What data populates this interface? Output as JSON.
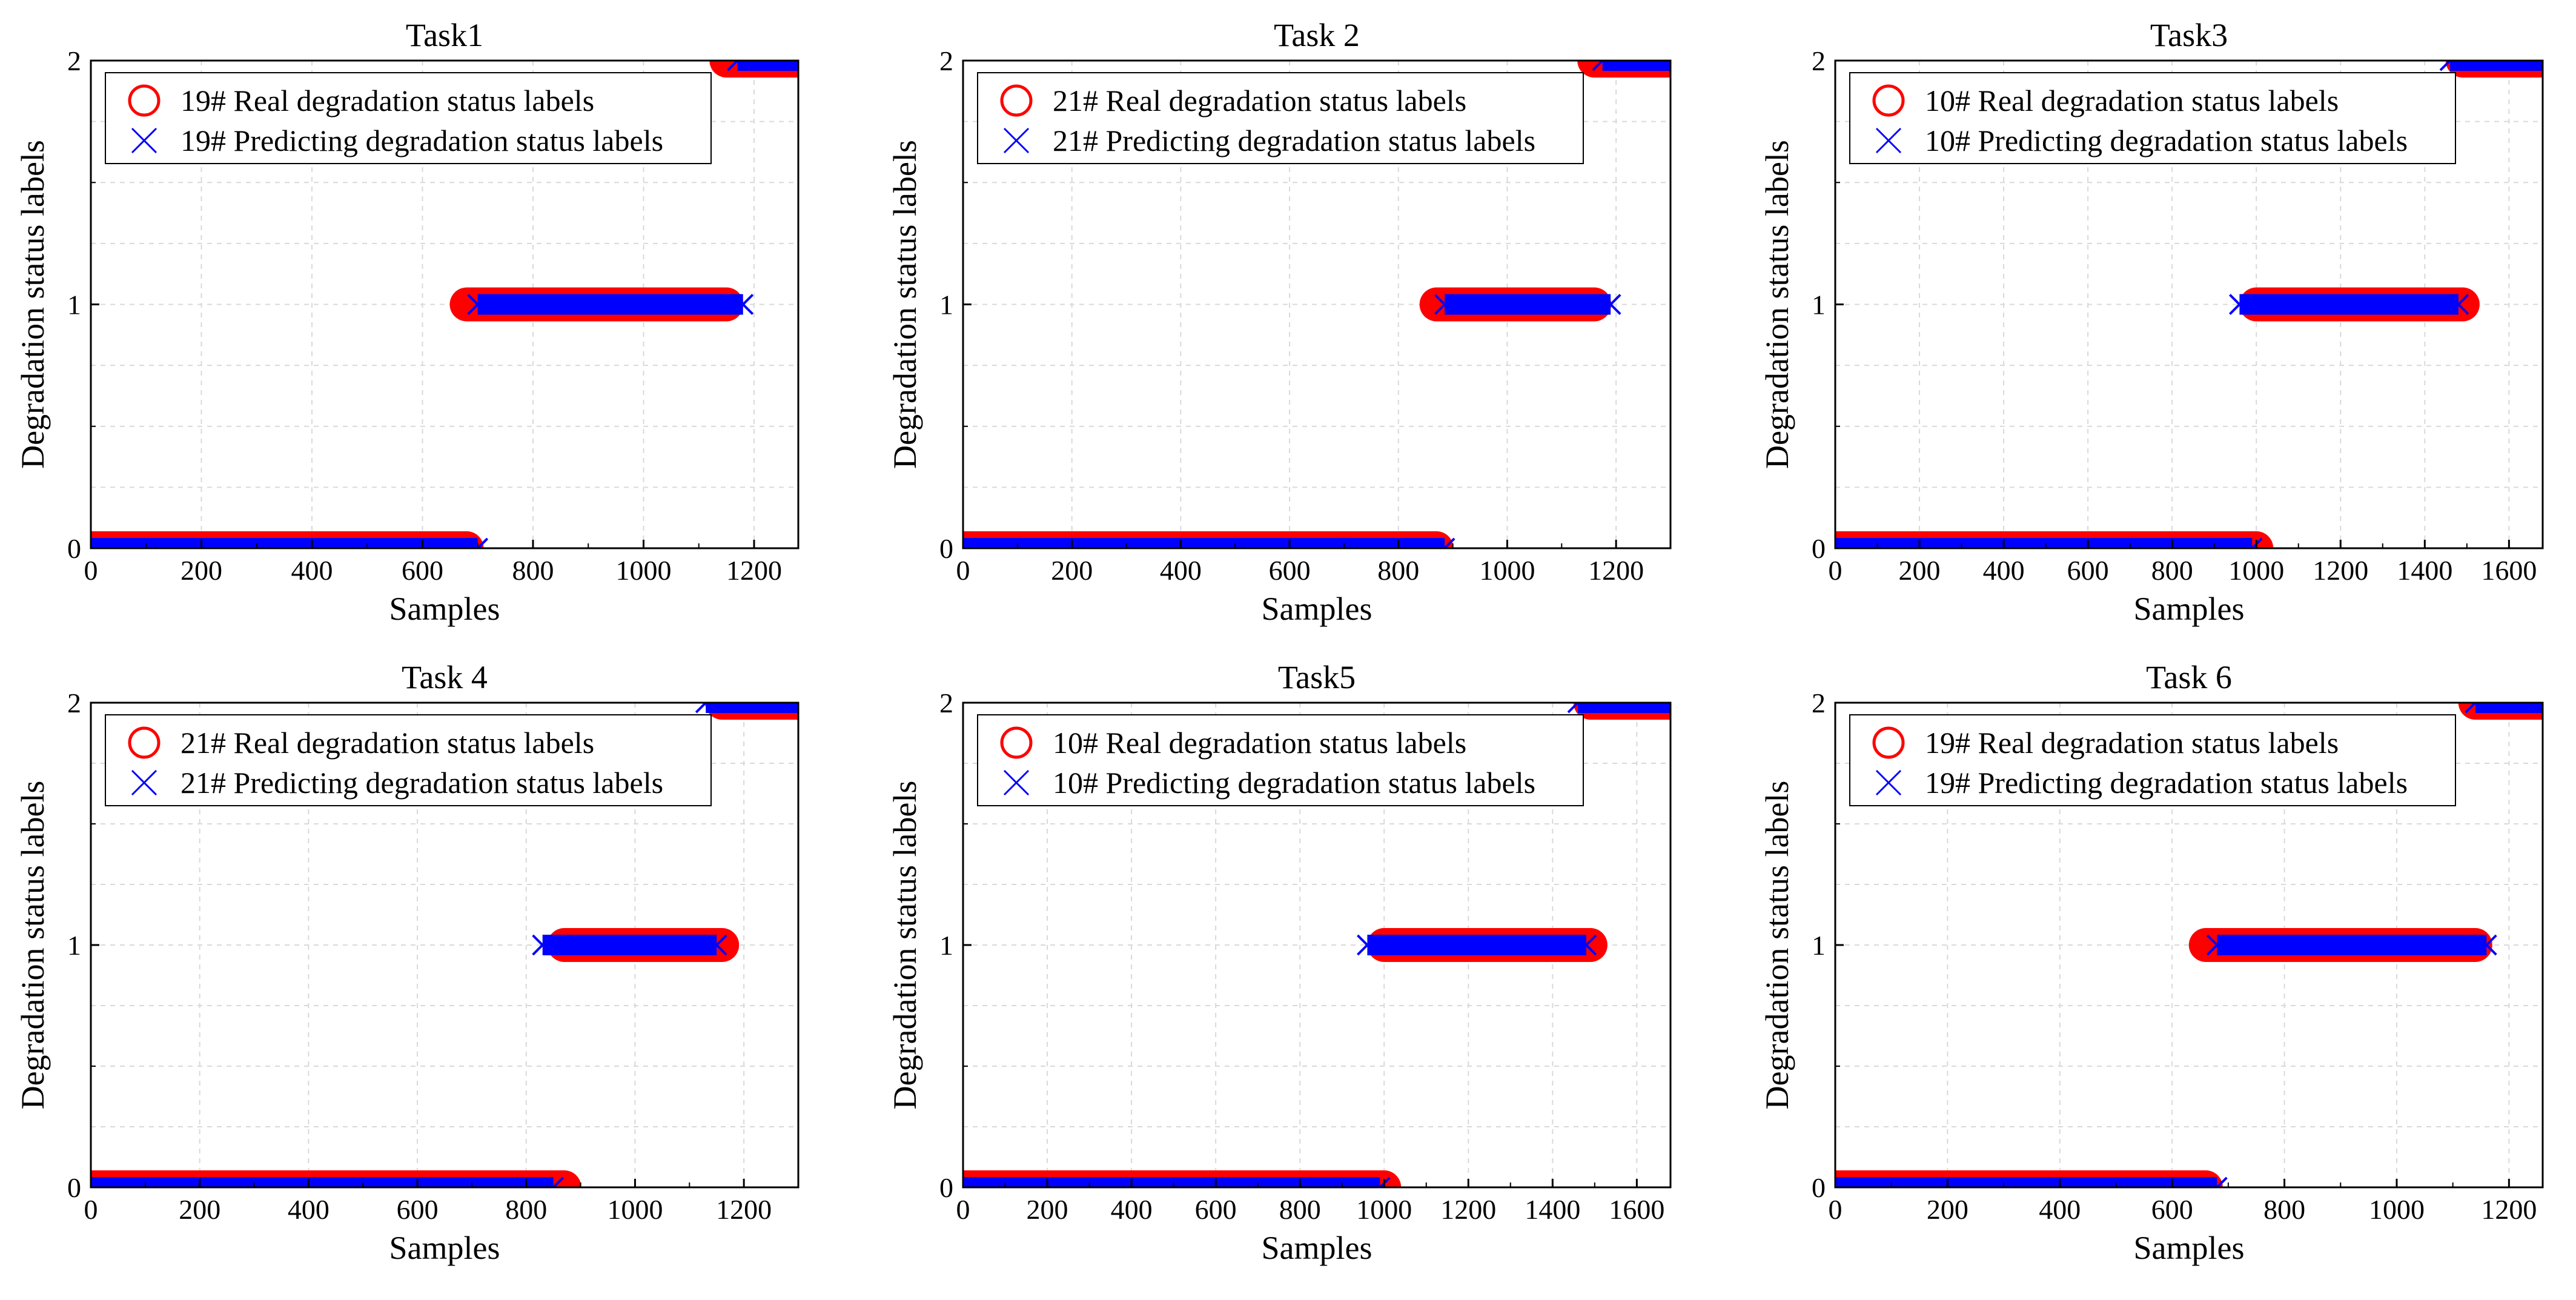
{
  "colors": {
    "real": "#ff0000",
    "predicted": "#0000ff",
    "grid": "#d9d9d9",
    "axis": "#000000"
  },
  "chart_data": [
    {
      "type": "scatter",
      "title": "Task1",
      "xlabel": "Samples",
      "ylabel": "Degradation status labels",
      "xlim": [
        0,
        1280
      ],
      "xticks": [
        0,
        200,
        400,
        600,
        800,
        1000,
        1200
      ],
      "ylim": [
        0,
        2
      ],
      "yticks": [
        0,
        1,
        2
      ],
      "grid": true,
      "legend_position": "top-left",
      "series": [
        {
          "name": "19# Real degradation status labels",
          "marker": "circle",
          "segments": [
            {
              "x": [
                0,
                680
              ],
              "label": 0
            },
            {
              "x": [
                680,
                1150
              ],
              "label": 1
            },
            {
              "x": [
                1150,
                1280
              ],
              "label": 2
            }
          ]
        },
        {
          "name": "19# Predicting degradation status labels",
          "marker": "x",
          "segments": [
            {
              "x": [
                0,
                700
              ],
              "label": 0
            },
            {
              "x": [
                700,
                1180
              ],
              "label": 1
            },
            {
              "x": [
                1170,
                1280
              ],
              "label": 2
            }
          ]
        }
      ]
    },
    {
      "type": "scatter",
      "title": "Task 2",
      "xlabel": "Samples",
      "ylabel": "Degradation status labels",
      "xlim": [
        0,
        1300
      ],
      "xticks": [
        0,
        200,
        400,
        600,
        800,
        1000,
        1200
      ],
      "ylim": [
        0,
        2
      ],
      "yticks": [
        0,
        1,
        2
      ],
      "grid": true,
      "legend_position": "top-left",
      "series": [
        {
          "name": "21# Real degradation status labels",
          "marker": "circle",
          "segments": [
            {
              "x": [
                0,
                870
              ],
              "label": 0
            },
            {
              "x": [
                870,
                1160
              ],
              "label": 1
            },
            {
              "x": [
                1160,
                1300
              ],
              "label": 2
            }
          ]
        },
        {
          "name": "21# Predicting degradation status labels",
          "marker": "x",
          "segments": [
            {
              "x": [
                0,
                885
              ],
              "label": 0
            },
            {
              "x": [
                885,
                1190
              ],
              "label": 1
            },
            {
              "x": [
                1175,
                1300
              ],
              "label": 2
            }
          ]
        }
      ]
    },
    {
      "type": "scatter",
      "title": "Task3",
      "xlabel": "Samples",
      "ylabel": "Degradation status labels",
      "xlim": [
        0,
        1680
      ],
      "xticks": [
        0,
        200,
        400,
        600,
        800,
        1000,
        1200,
        1400,
        1600
      ],
      "ylim": [
        0,
        2
      ],
      "yticks": [
        0,
        1,
        2
      ],
      "grid": true,
      "legend_position": "top-left",
      "series": [
        {
          "name": "10# Real degradation status labels",
          "marker": "circle",
          "segments": [
            {
              "x": [
                0,
                1000
              ],
              "label": 0
            },
            {
              "x": [
                1000,
                1490
              ],
              "label": 1
            },
            {
              "x": [
                1490,
                1680
              ],
              "label": 2
            }
          ]
        },
        {
          "name": "10# Predicting degradation status labels",
          "marker": "x",
          "segments": [
            {
              "x": [
                0,
                990
              ],
              "label": 0
            },
            {
              "x": [
                960,
                1480
              ],
              "label": 1
            },
            {
              "x": [
                1460,
                1680
              ],
              "label": 2
            }
          ]
        }
      ]
    },
    {
      "type": "scatter",
      "title": "Task 4",
      "xlabel": "Samples",
      "ylabel": "Degradation status labels",
      "xlim": [
        0,
        1300
      ],
      "xticks": [
        0,
        200,
        400,
        600,
        800,
        1000,
        1200
      ],
      "ylim": [
        0,
        2
      ],
      "yticks": [
        0,
        1,
        2
      ],
      "grid": true,
      "legend_position": "top-left",
      "series": [
        {
          "name": "21# Real degradation status labels",
          "marker": "circle",
          "segments": [
            {
              "x": [
                0,
                870
              ],
              "label": 0
            },
            {
              "x": [
                870,
                1160
              ],
              "label": 1
            },
            {
              "x": [
                1160,
                1300
              ],
              "label": 2
            }
          ]
        },
        {
          "name": "21# Predicting degradation status labels",
          "marker": "x",
          "segments": [
            {
              "x": [
                0,
                850
              ],
              "label": 0
            },
            {
              "x": [
                830,
                1150
              ],
              "label": 1
            },
            {
              "x": [
                1130,
                1300
              ],
              "label": 2
            }
          ]
        }
      ]
    },
    {
      "type": "scatter",
      "title": "Task5",
      "xlabel": "Samples",
      "ylabel": "Degradation status labels",
      "xlim": [
        0,
        1680
      ],
      "xticks": [
        0,
        200,
        400,
        600,
        800,
        1000,
        1200,
        1400,
        1600
      ],
      "ylim": [
        0,
        2
      ],
      "yticks": [
        0,
        1,
        2
      ],
      "grid": true,
      "legend_position": "top-left",
      "series": [
        {
          "name": "10# Real degradation status labels",
          "marker": "circle",
          "segments": [
            {
              "x": [
                0,
                1000
              ],
              "label": 0
            },
            {
              "x": [
                1000,
                1490
              ],
              "label": 1
            },
            {
              "x": [
                1490,
                1680
              ],
              "label": 2
            }
          ]
        },
        {
          "name": "10# Predicting degradation status labels",
          "marker": "x",
          "segments": [
            {
              "x": [
                0,
                990
              ],
              "label": 0
            },
            {
              "x": [
                960,
                1480
              ],
              "label": 1
            },
            {
              "x": [
                1460,
                1680
              ],
              "label": 2
            }
          ]
        }
      ]
    },
    {
      "type": "scatter",
      "title": "Task 6",
      "xlabel": "Samples",
      "ylabel": "Degradation status labels",
      "xlim": [
        0,
        1260
      ],
      "xticks": [
        0,
        200,
        400,
        600,
        800,
        1000,
        1200
      ],
      "ylim": [
        0,
        2
      ],
      "yticks": [
        0,
        1,
        2
      ],
      "grid": true,
      "legend_position": "top-left",
      "series": [
        {
          "name": "19# Real degradation status labels",
          "marker": "circle",
          "segments": [
            {
              "x": [
                0,
                660
              ],
              "label": 0
            },
            {
              "x": [
                660,
                1140
              ],
              "label": 1
            },
            {
              "x": [
                1140,
                1260
              ],
              "label": 2
            }
          ]
        },
        {
          "name": "19# Predicting degradation status labels",
          "marker": "x",
          "segments": [
            {
              "x": [
                0,
                680
              ],
              "label": 0
            },
            {
              "x": [
                680,
                1160
              ],
              "label": 1
            },
            {
              "x": [
                1140,
                1260
              ],
              "label": 2
            }
          ]
        }
      ]
    }
  ]
}
